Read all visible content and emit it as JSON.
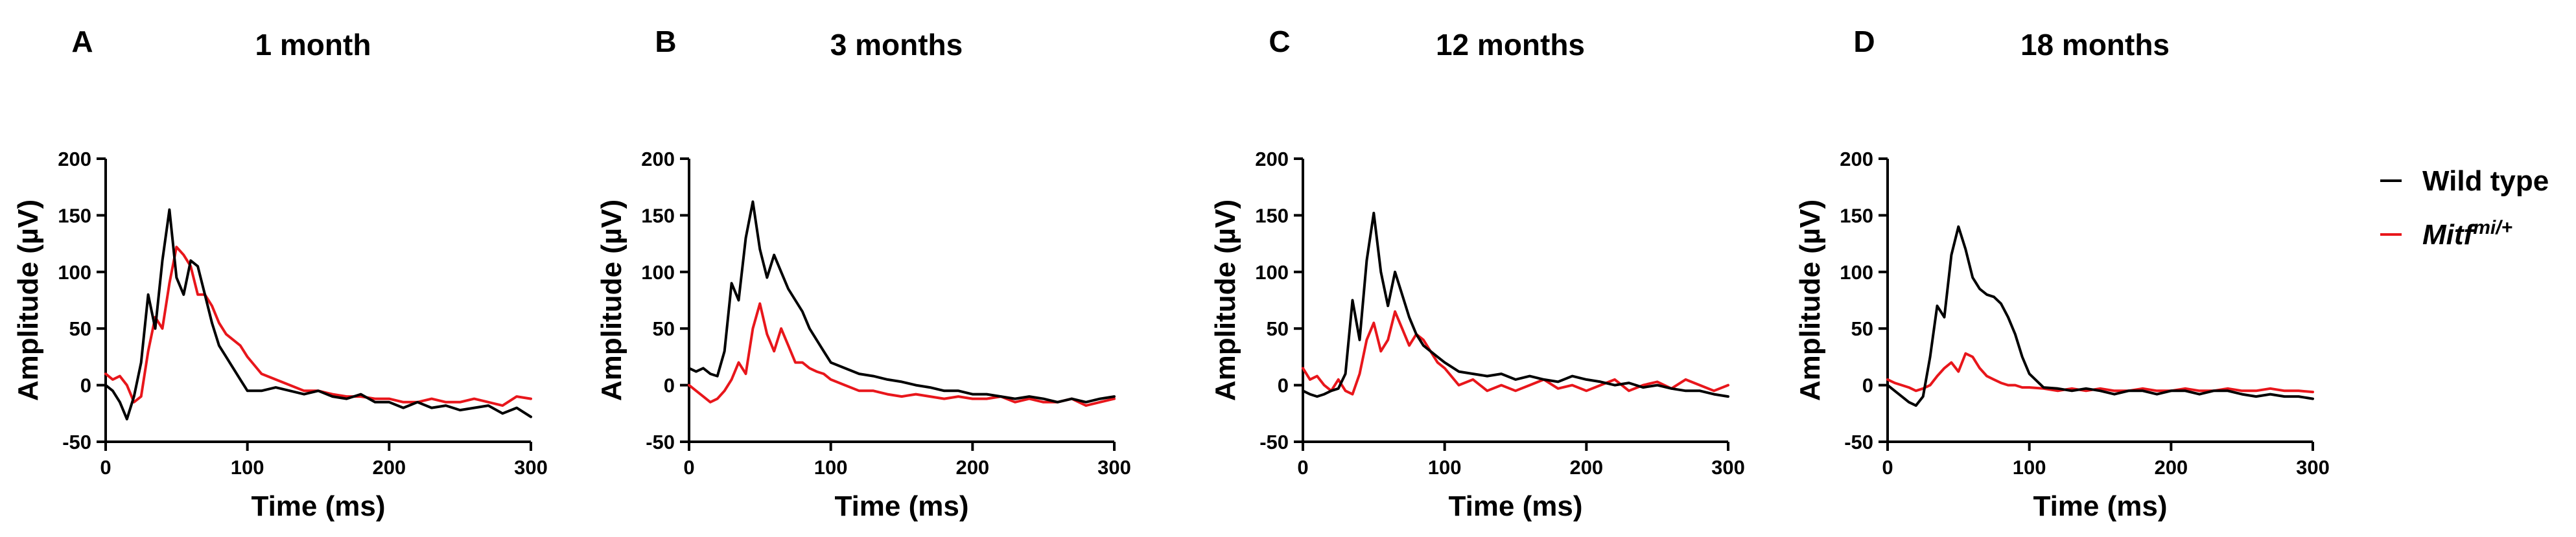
{
  "colors": {
    "wild_type": "#000000",
    "mutant": "#e8161b"
  },
  "legend": {
    "wild_type": "Wild type",
    "mutant_base": "Mitf",
    "mutant_sup": "mi/+"
  },
  "chart_data": [
    {
      "type": "line",
      "panel": "A",
      "title": "1 month",
      "xlabel": "Time (ms)",
      "ylabel": "Amplitude (µV)",
      "xlim": [
        0,
        300
      ],
      "ylim": [
        -50,
        200
      ],
      "xticks": [
        0,
        100,
        200,
        300
      ],
      "yticks": [
        -50,
        0,
        50,
        100,
        150,
        200
      ],
      "series": [
        {
          "name": "Wild type",
          "color": "#000000",
          "x": [
            0,
            5,
            10,
            15,
            20,
            25,
            30,
            35,
            40,
            45,
            50,
            55,
            60,
            65,
            70,
            75,
            80,
            85,
            90,
            95,
            100,
            110,
            120,
            130,
            140,
            150,
            160,
            170,
            180,
            190,
            200,
            210,
            220,
            230,
            240,
            250,
            260,
            270,
            280,
            290,
            300
          ],
          "y": [
            0,
            -5,
            -15,
            -30,
            -10,
            20,
            80,
            50,
            110,
            155,
            95,
            80,
            110,
            105,
            80,
            55,
            35,
            25,
            15,
            5,
            -5,
            -5,
            -2,
            -5,
            -8,
            -5,
            -10,
            -12,
            -8,
            -15,
            -15,
            -20,
            -15,
            -20,
            -18,
            -22,
            -20,
            -18,
            -25,
            -20,
            -28
          ]
        },
        {
          "name": "Mitf mi/+",
          "color": "#e8161b",
          "x": [
            0,
            5,
            10,
            15,
            20,
            25,
            30,
            35,
            40,
            45,
            50,
            55,
            60,
            65,
            70,
            75,
            80,
            85,
            90,
            95,
            100,
            110,
            120,
            130,
            140,
            150,
            160,
            170,
            180,
            190,
            200,
            210,
            220,
            230,
            240,
            250,
            260,
            270,
            280,
            290,
            300
          ],
          "y": [
            10,
            5,
            8,
            0,
            -15,
            -10,
            30,
            60,
            50,
            90,
            122,
            115,
            105,
            80,
            80,
            70,
            55,
            45,
            40,
            35,
            25,
            10,
            5,
            0,
            -5,
            -5,
            -8,
            -10,
            -10,
            -12,
            -12,
            -15,
            -15,
            -12,
            -15,
            -15,
            -12,
            -15,
            -18,
            -10,
            -12
          ]
        }
      ]
    },
    {
      "type": "line",
      "panel": "B",
      "title": "3 months",
      "xlabel": "Time (ms)",
      "ylabel": "Amplitude (µV)",
      "xlim": [
        0,
        300
      ],
      "ylim": [
        -50,
        200
      ],
      "xticks": [
        0,
        100,
        200,
        300
      ],
      "yticks": [
        -50,
        0,
        50,
        100,
        150,
        200
      ],
      "series": [
        {
          "name": "Wild type",
          "color": "#000000",
          "x": [
            0,
            5,
            10,
            15,
            20,
            25,
            30,
            35,
            40,
            45,
            50,
            55,
            60,
            65,
            70,
            75,
            80,
            85,
            90,
            95,
            100,
            110,
            120,
            130,
            140,
            150,
            160,
            170,
            180,
            190,
            200,
            210,
            220,
            230,
            240,
            250,
            260,
            270,
            280,
            290,
            300
          ],
          "y": [
            15,
            12,
            15,
            10,
            8,
            30,
            90,
            75,
            130,
            162,
            120,
            95,
            115,
            100,
            85,
            75,
            65,
            50,
            40,
            30,
            20,
            15,
            10,
            8,
            5,
            3,
            0,
            -2,
            -5,
            -5,
            -8,
            -8,
            -10,
            -12,
            -10,
            -12,
            -15,
            -12,
            -15,
            -12,
            -10
          ]
        },
        {
          "name": "Mitf mi/+",
          "color": "#e8161b",
          "x": [
            0,
            5,
            10,
            15,
            20,
            25,
            30,
            35,
            40,
            45,
            50,
            55,
            60,
            65,
            70,
            75,
            80,
            85,
            90,
            95,
            100,
            110,
            120,
            130,
            140,
            150,
            160,
            170,
            180,
            190,
            200,
            210,
            220,
            230,
            240,
            250,
            260,
            270,
            280,
            290,
            300
          ],
          "y": [
            0,
            -5,
            -10,
            -15,
            -12,
            -5,
            5,
            20,
            10,
            50,
            72,
            45,
            30,
            50,
            35,
            20,
            20,
            15,
            12,
            10,
            5,
            0,
            -5,
            -5,
            -8,
            -10,
            -8,
            -10,
            -12,
            -10,
            -12,
            -12,
            -10,
            -15,
            -12,
            -15,
            -15,
            -12,
            -18,
            -15,
            -12
          ]
        }
      ]
    },
    {
      "type": "line",
      "panel": "C",
      "title": "12 months",
      "xlabel": "Time (ms)",
      "ylabel": "Amplitude (µV)",
      "xlim": [
        0,
        300
      ],
      "ylim": [
        -50,
        200
      ],
      "xticks": [
        0,
        100,
        200,
        300
      ],
      "yticks": [
        -50,
        0,
        50,
        100,
        150,
        200
      ],
      "series": [
        {
          "name": "Wild type",
          "color": "#000000",
          "x": [
            0,
            5,
            10,
            15,
            20,
            25,
            30,
            35,
            40,
            45,
            50,
            55,
            60,
            65,
            70,
            75,
            80,
            85,
            90,
            95,
            100,
            110,
            120,
            130,
            140,
            150,
            160,
            170,
            180,
            190,
            200,
            210,
            220,
            230,
            240,
            250,
            260,
            270,
            280,
            290,
            300
          ],
          "y": [
            -5,
            -8,
            -10,
            -8,
            -5,
            -3,
            10,
            75,
            40,
            110,
            152,
            100,
            70,
            100,
            80,
            60,
            45,
            35,
            30,
            25,
            20,
            12,
            10,
            8,
            10,
            5,
            8,
            5,
            3,
            8,
            5,
            3,
            0,
            2,
            -2,
            0,
            -3,
            -5,
            -5,
            -8,
            -10
          ]
        },
        {
          "name": "Mitf mi/+",
          "color": "#e8161b",
          "x": [
            0,
            5,
            10,
            15,
            20,
            25,
            30,
            35,
            40,
            45,
            50,
            55,
            60,
            65,
            70,
            75,
            80,
            85,
            90,
            95,
            100,
            110,
            120,
            130,
            140,
            150,
            160,
            170,
            180,
            190,
            200,
            210,
            220,
            230,
            240,
            250,
            260,
            270,
            280,
            290,
            300
          ],
          "y": [
            15,
            5,
            8,
            0,
            -5,
            5,
            -5,
            -8,
            10,
            40,
            55,
            30,
            40,
            65,
            50,
            35,
            45,
            40,
            30,
            20,
            15,
            0,
            5,
            -5,
            0,
            -5,
            0,
            5,
            -3,
            0,
            -5,
            0,
            5,
            -5,
            0,
            3,
            -3,
            5,
            0,
            -5,
            0
          ]
        }
      ]
    },
    {
      "type": "line",
      "panel": "D",
      "title": "18 months",
      "xlabel": "Time (ms)",
      "ylabel": "Amplitude (µV)",
      "xlim": [
        0,
        300
      ],
      "ylim": [
        -50,
        200
      ],
      "xticks": [
        0,
        100,
        200,
        300
      ],
      "yticks": [
        -50,
        0,
        50,
        100,
        150,
        200
      ],
      "series": [
        {
          "name": "Wild type",
          "color": "#000000",
          "x": [
            0,
            5,
            10,
            15,
            20,
            25,
            30,
            35,
            40,
            45,
            50,
            55,
            60,
            65,
            70,
            75,
            80,
            85,
            90,
            95,
            100,
            110,
            120,
            130,
            140,
            150,
            160,
            170,
            180,
            190,
            200,
            210,
            220,
            230,
            240,
            250,
            260,
            270,
            280,
            290,
            300
          ],
          "y": [
            0,
            -5,
            -10,
            -15,
            -18,
            -10,
            25,
            70,
            60,
            115,
            140,
            120,
            95,
            85,
            80,
            78,
            72,
            60,
            45,
            25,
            10,
            -2,
            -3,
            -5,
            -3,
            -5,
            -8,
            -5,
            -5,
            -8,
            -5,
            -5,
            -8,
            -5,
            -5,
            -8,
            -10,
            -8,
            -10,
            -10,
            -12
          ]
        },
        {
          "name": "Mitf mi/+",
          "color": "#e8161b",
          "x": [
            0,
            5,
            10,
            15,
            20,
            25,
            30,
            35,
            40,
            45,
            50,
            55,
            60,
            65,
            70,
            75,
            80,
            85,
            90,
            95,
            100,
            110,
            120,
            130,
            140,
            150,
            160,
            170,
            180,
            190,
            200,
            210,
            220,
            230,
            240,
            250,
            260,
            270,
            280,
            290,
            300
          ],
          "y": [
            5,
            2,
            0,
            -2,
            -5,
            -3,
            0,
            8,
            15,
            20,
            12,
            28,
            25,
            15,
            8,
            5,
            2,
            0,
            0,
            -2,
            -2,
            -3,
            -5,
            -3,
            -5,
            -3,
            -5,
            -5,
            -3,
            -5,
            -5,
            -3,
            -5,
            -5,
            -3,
            -5,
            -5,
            -3,
            -5,
            -5,
            -6
          ]
        }
      ]
    }
  ]
}
